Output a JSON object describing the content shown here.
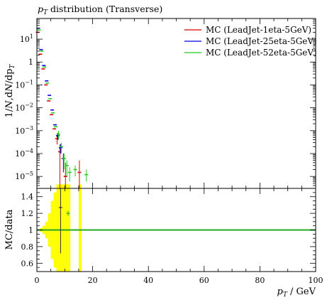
{
  "chart_data": {
    "title": "p_T distribution (Transverse)",
    "title_parts": {
      "var": "p",
      "sub": "T",
      "rest": " distribution (Transverse)"
    },
    "xlabel": "p_T / GeV",
    "xlabel_parts": {
      "var": "p",
      "sub": "T",
      "rest": " / GeV"
    },
    "ylabel_main": "1/N dN/dp_T",
    "ylabel_main_parts": {
      "a": "1/",
      "b": "N",
      "c": ",d",
      "d": "N",
      "e": "/dp",
      "sub": "T"
    },
    "ylabel_ratio": "MC/data",
    "legend_placement": "top-right",
    "x_axis": {
      "range": [
        0,
        100
      ],
      "ticks": [
        0,
        20,
        40,
        60,
        80,
        100
      ],
      "tick_labels": [
        "0",
        "20",
        "40",
        "60",
        "80",
        "100"
      ]
    },
    "main_panel": {
      "type": "scatter",
      "y_scale": "log",
      "y_range": [
        3e-06,
        80
      ],
      "y_ticks": [
        1e-05,
        0.0001,
        0.001,
        0.01,
        0.1,
        1,
        10
      ],
      "y_tick_labels": [
        "10^-5",
        "10^-4",
        "10^-3",
        "10^-2",
        "10^-1",
        "1",
        "10^1"
      ]
    },
    "ratio_panel": {
      "type": "line",
      "y_range": [
        0.5,
        1.5
      ],
      "y_ticks": [
        0.6,
        0.8,
        1,
        1.2,
        1.4
      ],
      "y_tick_labels": [
        "0.6",
        "0.8",
        "1",
        "1.2",
        "1.4"
      ],
      "reference_value": 1,
      "band_color": "#ffff00",
      "band": [
        {
          "x": [
            1,
            2
          ],
          "lo": 0.98,
          "hi": 1.02
        },
        {
          "x": [
            2,
            3
          ],
          "lo": 0.95,
          "hi": 1.05
        },
        {
          "x": [
            3,
            4
          ],
          "lo": 0.9,
          "hi": 1.1
        },
        {
          "x": [
            4,
            5
          ],
          "lo": 0.8,
          "hi": 1.2
        },
        {
          "x": [
            5,
            6
          ],
          "lo": 0.65,
          "hi": 1.35
        },
        {
          "x": [
            6,
            7
          ],
          "lo": 0.55,
          "hi": 1.45
        },
        {
          "x": [
            7,
            8
          ],
          "lo": 0.5,
          "hi": 1.5
        },
        {
          "x": [
            8,
            9
          ],
          "lo": 0.5,
          "hi": 1.5
        },
        {
          "x": [
            9,
            10
          ],
          "lo": 0.5,
          "hi": 1.5
        },
        {
          "x": [
            10,
            11
          ],
          "lo": 0.5,
          "hi": 1.5
        },
        {
          "x": [
            11,
            12
          ],
          "lo": 0.5,
          "hi": 1.5
        },
        {
          "x": [
            15,
            16
          ],
          "lo": 0.5,
          "hi": 1.5
        }
      ],
      "points": [
        {
          "x": 8.5,
          "y": 1.27,
          "err": 0.55,
          "color": "#333333"
        },
        {
          "x": 11.2,
          "y": 1.2,
          "err": 0.03,
          "color": "#22aa22"
        }
      ]
    },
    "series": [
      {
        "name": "MC (LeadJet-1eta-5GeV)",
        "color": "#dd0000",
        "points": [
          {
            "x": 0.5,
            "y": 20
          },
          {
            "x": 1.5,
            "y": 2.2
          },
          {
            "x": 2.5,
            "y": 0.5
          },
          {
            "x": 3.5,
            "y": 0.1
          },
          {
            "x": 4.5,
            "y": 0.02
          },
          {
            "x": 5.5,
            "y": 0.005
          },
          {
            "x": 6.5,
            "y": 0.0012
          },
          {
            "x": 7.5,
            "y": 0.00045,
            "lo": 0.00025,
            "hi": 0.0007
          },
          {
            "x": 8.5,
            "y": 0.00012,
            "lo": 3e-06,
            "hi": 0.00025
          },
          {
            "x": 10.5,
            "y": 1e-05,
            "lo": 3e-06,
            "hi": 4e-05
          },
          {
            "x": 15.5,
            "y": 1.5e-05,
            "lo": 3e-06,
            "hi": 5e-05
          }
        ]
      },
      {
        "name": "MC (LeadJet-25eta-5GeV)",
        "color": "#0000dd",
        "points": [
          {
            "x": 0.5,
            "y": 30
          },
          {
            "x": 1.5,
            "y": 3.5
          },
          {
            "x": 2.5,
            "y": 0.7
          },
          {
            "x": 3.5,
            "y": 0.15
          },
          {
            "x": 4.5,
            "y": 0.035
          },
          {
            "x": 5.5,
            "y": 0.008
          },
          {
            "x": 6.5,
            "y": 0.0018
          },
          {
            "x": 7.5,
            "y": 0.0006,
            "lo": 0.0004,
            "hi": 0.0008
          },
          {
            "x": 8.5,
            "y": 0.00018,
            "lo": 0.0001,
            "hi": 0.00026
          },
          {
            "x": 9.5,
            "y": 6e-05,
            "lo": 1.5e-05,
            "hi": 0.0001
          }
        ]
      },
      {
        "name": "MC (LeadJet-52eta-5GeV)",
        "color": "#22cc22",
        "points": [
          {
            "x": 0.5,
            "y": 25
          },
          {
            "x": 1.5,
            "y": 3
          },
          {
            "x": 2.5,
            "y": 0.6
          },
          {
            "x": 3.5,
            "y": 0.12
          },
          {
            "x": 4.5,
            "y": 0.025
          },
          {
            "x": 5.5,
            "y": 0.006
          },
          {
            "x": 6.5,
            "y": 0.0015
          },
          {
            "x": 7.5,
            "y": 0.0007,
            "lo": 0.0004,
            "hi": 0.001
          },
          {
            "x": 8.5,
            "y": 0.0002,
            "lo": 0.0001,
            "hi": 0.0003
          },
          {
            "x": 9.5,
            "y": 6e-05,
            "lo": 2e-05,
            "hi": 0.0001
          },
          {
            "x": 10.5,
            "y": 3e-05,
            "lo": 1e-05,
            "hi": 5e-05
          },
          {
            "x": 11.5,
            "y": 1.5e-05,
            "lo": 6e-06,
            "hi": 2.5e-05
          },
          {
            "x": 13.5,
            "y": 2e-05,
            "lo": 1e-05,
            "hi": 3e-05
          },
          {
            "x": 17.5,
            "y": 1.2e-05,
            "lo": 6e-06,
            "hi": 2e-05
          }
        ]
      }
    ]
  }
}
